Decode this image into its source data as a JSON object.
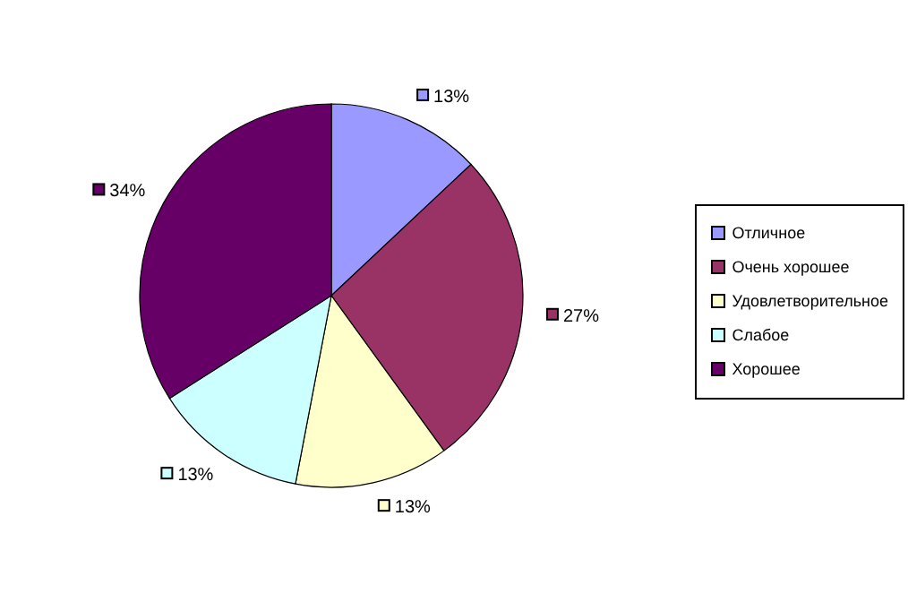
{
  "chart_data": {
    "type": "pie",
    "categories": [
      "Отличное",
      "Очень хорошее",
      "Удовлетворительное",
      "Слабое",
      "Хорошее"
    ],
    "values": [
      13,
      27,
      13,
      13,
      34
    ],
    "colors": [
      "#9999ff",
      "#993366",
      "#ffffcc",
      "#ccffff",
      "#660066"
    ],
    "value_labels": [
      "13%",
      "27%",
      "13%",
      "13%",
      "34%"
    ],
    "legend": "right"
  }
}
